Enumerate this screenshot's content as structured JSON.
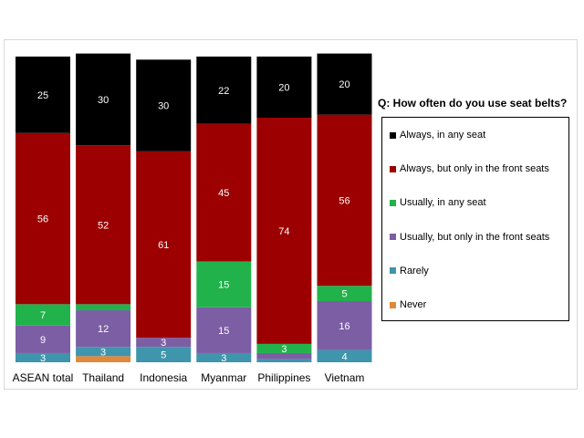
{
  "chart_data": {
    "type": "bar",
    "stacked": true,
    "orientation": "vertical",
    "categories": [
      "ASEAN total",
      "Thailand",
      "Indonesia",
      "Myanmar",
      "Philippines",
      "Vietnam"
    ],
    "series": [
      {
        "name": "Never",
        "color": "#e0893a",
        "values": [
          0,
          2,
          0,
          0,
          0,
          0
        ],
        "labels": [
          "",
          "",
          "",
          "",
          "",
          ""
        ]
      },
      {
        "name": "Rarely",
        "color": "#3e95ac",
        "values": [
          3,
          3,
          5,
          3,
          1,
          4
        ],
        "labels": [
          "3",
          "3",
          "5",
          "3",
          "",
          "4"
        ]
      },
      {
        "name": "Usually, but only in the front seats",
        "color": "#7c5ea4",
        "values": [
          9,
          12,
          3,
          15,
          2,
          16
        ],
        "labels": [
          "9",
          "12",
          "3",
          "15",
          "",
          "16"
        ]
      },
      {
        "name": "Usually, in any seat",
        "color": "#22b24c",
        "values": [
          7,
          2,
          0,
          15,
          3,
          5
        ],
        "labels": [
          "7",
          "",
          "",
          "15",
          "3",
          "5"
        ]
      },
      {
        "name": "Always, but only in the front seats",
        "color": "#9c0000",
        "values": [
          56,
          52,
          61,
          45,
          74,
          56
        ],
        "labels": [
          "56",
          "52",
          "61",
          "45",
          "74",
          "56"
        ]
      },
      {
        "name": "Always, in any seat",
        "color": "#000000",
        "values": [
          25,
          30,
          30,
          22,
          20,
          20
        ],
        "labels": [
          "25",
          "30",
          "30",
          "22",
          "20",
          "20"
        ]
      }
    ],
    "legend_order": [
      "Always, in any seat",
      "Always, but only in the front seats",
      "Usually, in any seat",
      "Usually, but only in the front seats",
      "Rarely",
      "Never"
    ],
    "ylim": [
      0,
      100
    ],
    "legend": {
      "title": "Q: How often do you use seat belts?",
      "placement": "right"
    },
    "grid": false
  }
}
